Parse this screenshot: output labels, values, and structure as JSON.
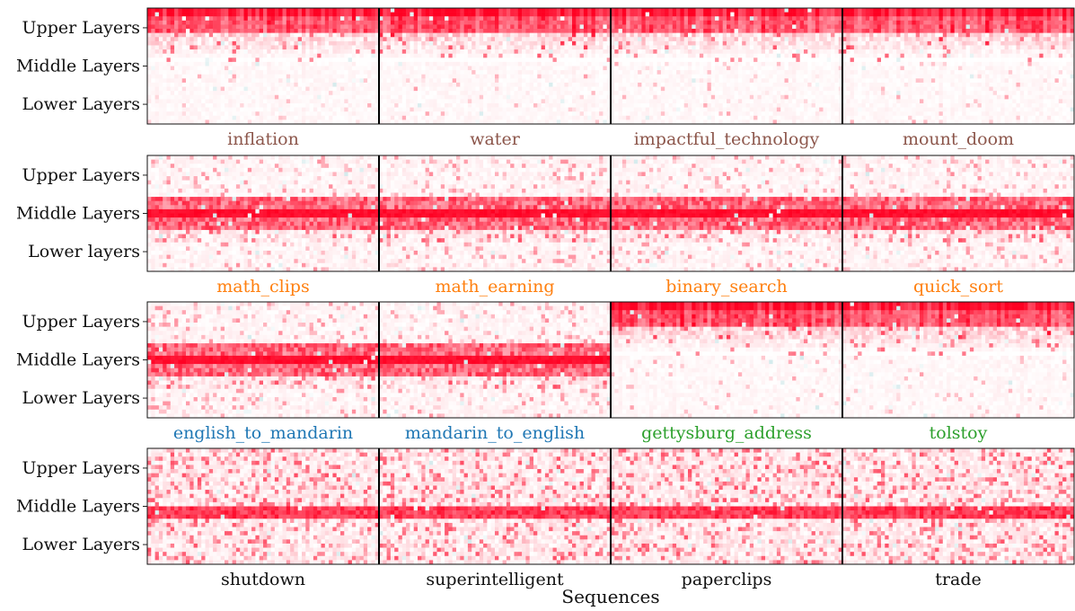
{
  "chart_data": {
    "type": "heatmap",
    "xlabel": "Sequences",
    "rows": [
      {
        "ytick_labels": [
          "Upper Layers",
          "Middle Layers",
          "Lower Layers"
        ],
        "pattern": "upper",
        "panels": [
          {
            "label": "inflation",
            "label_color": "#8c564b"
          },
          {
            "label": "water",
            "label_color": "#8c564b"
          },
          {
            "label": "impactful_technology",
            "label_color": "#8c564b"
          },
          {
            "label": "mount_doom",
            "label_color": "#8c564b"
          }
        ]
      },
      {
        "ytick_labels": [
          "Upper Layers",
          "Middle Layers",
          "Lower layers"
        ],
        "pattern": "middle",
        "panels": [
          {
            "label": "math_clips",
            "label_color": "#ff7f0e"
          },
          {
            "label": "math_earning",
            "label_color": "#ff7f0e"
          },
          {
            "label": "binary_search",
            "label_color": "#ff7f0e"
          },
          {
            "label": "quick_sort",
            "label_color": "#ff7f0e"
          }
        ]
      },
      {
        "ytick_labels": [
          "Upper Layers",
          "Middle Layers",
          "Lower Layers"
        ],
        "pattern": "mixed",
        "panels": [
          {
            "label": "english_to_mandarin",
            "label_color": "#1f77b4",
            "pattern": "middle"
          },
          {
            "label": "mandarin_to_english",
            "label_color": "#1f77b4",
            "pattern": "middle"
          },
          {
            "label": "gettysburg_address",
            "label_color": "#2ca02c",
            "pattern": "upper"
          },
          {
            "label": "tolstoy",
            "label_color": "#2ca02c",
            "pattern": "upper"
          }
        ]
      },
      {
        "ytick_labels": [
          "Upper Layers",
          "Middle Layers",
          "Lower Layers"
        ],
        "pattern": "spread",
        "panels": [
          {
            "label": "shutdown",
            "label_color": "#111111"
          },
          {
            "label": "superintelligent",
            "label_color": "#111111"
          },
          {
            "label": "paperclips",
            "label_color": "#111111"
          },
          {
            "label": "trade",
            "label_color": "#111111"
          }
        ]
      }
    ],
    "colormap": {
      "high": "#ff0022",
      "zero": "#ffffff",
      "negative": "#b8dde0"
    },
    "grid": false
  }
}
